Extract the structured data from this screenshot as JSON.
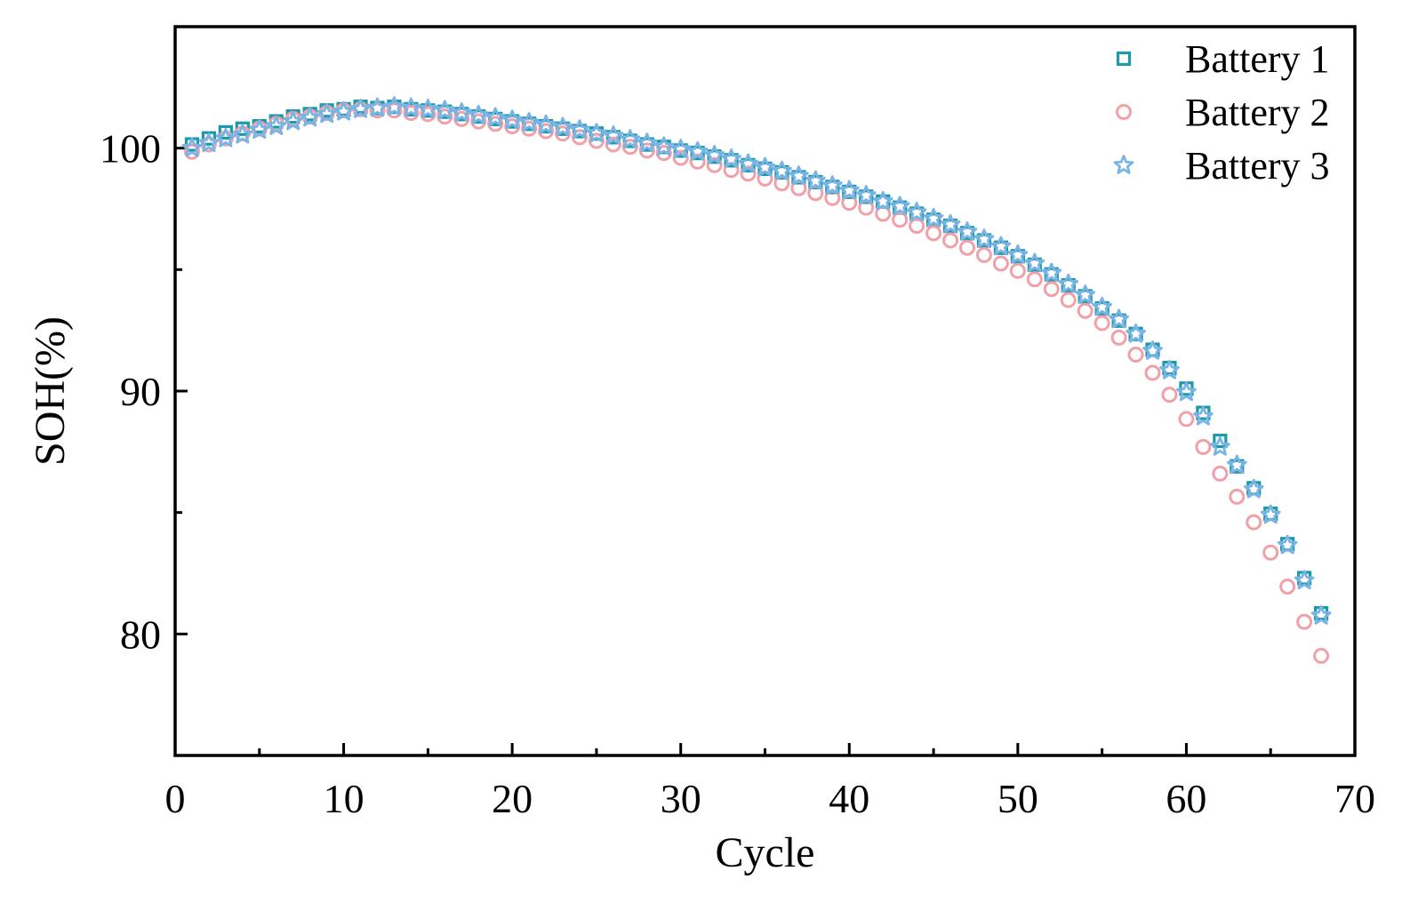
{
  "chart_data": {
    "type": "scatter",
    "title": "",
    "xlabel": "Cycle",
    "ylabel": "SOH(%)",
    "xlim": [
      0,
      70
    ],
    "ylim": [
      75,
      105
    ],
    "xticks": [
      0,
      10,
      20,
      30,
      40,
      50,
      60,
      70
    ],
    "yticks": [
      80,
      90,
      100
    ],
    "legend_position": "top-right",
    "grid": false,
    "x": [
      1,
      2,
      3,
      4,
      5,
      6,
      7,
      8,
      9,
      10,
      11,
      12,
      13,
      14,
      15,
      16,
      17,
      18,
      19,
      20,
      21,
      22,
      23,
      24,
      25,
      26,
      27,
      28,
      29,
      30,
      31,
      32,
      33,
      34,
      35,
      36,
      37,
      38,
      39,
      40,
      41,
      42,
      43,
      44,
      45,
      46,
      47,
      48,
      49,
      50,
      51,
      52,
      53,
      54,
      55,
      56,
      57,
      58,
      59,
      60,
      61,
      62,
      63,
      64,
      65,
      66,
      67,
      68
    ],
    "series": [
      {
        "name": "Battery 1",
        "marker": "square",
        "color": "#1a9aaa",
        "values": [
          100.15,
          100.4,
          100.65,
          100.8,
          100.9,
          101.1,
          101.3,
          101.4,
          101.55,
          101.6,
          101.7,
          101.65,
          101.7,
          101.6,
          101.55,
          101.5,
          101.4,
          101.3,
          101.2,
          101.1,
          101.0,
          100.9,
          100.8,
          100.7,
          100.6,
          100.45,
          100.3,
          100.15,
          100.05,
          99.9,
          99.8,
          99.65,
          99.5,
          99.3,
          99.15,
          99.0,
          98.8,
          98.6,
          98.4,
          98.2,
          98.0,
          97.8,
          97.55,
          97.3,
          97.05,
          96.8,
          96.5,
          96.2,
          95.9,
          95.55,
          95.2,
          94.8,
          94.35,
          93.9,
          93.4,
          92.9,
          92.35,
          91.7,
          90.95,
          90.1,
          89.1,
          87.95,
          86.9,
          86.0,
          84.95,
          83.7,
          82.3,
          80.85
        ]
      },
      {
        "name": "Battery 2",
        "marker": "circle",
        "color": "#f2a0a8",
        "values": [
          99.85,
          100.15,
          100.4,
          100.6,
          100.8,
          101.0,
          101.2,
          101.3,
          101.45,
          101.55,
          101.6,
          101.55,
          101.55,
          101.45,
          101.4,
          101.3,
          101.2,
          101.1,
          101.0,
          100.9,
          100.8,
          100.7,
          100.6,
          100.45,
          100.3,
          100.15,
          100.05,
          99.9,
          99.8,
          99.6,
          99.45,
          99.3,
          99.1,
          98.95,
          98.75,
          98.55,
          98.35,
          98.15,
          97.95,
          97.75,
          97.55,
          97.3,
          97.05,
          96.8,
          96.5,
          96.2,
          95.9,
          95.6,
          95.25,
          94.95,
          94.6,
          94.2,
          93.75,
          93.3,
          92.8,
          92.2,
          91.5,
          90.75,
          89.85,
          88.85,
          87.7,
          86.6,
          85.65,
          84.6,
          83.35,
          81.95,
          80.5,
          79.1
        ]
      },
      {
        "name": "Battery 3",
        "marker": "star",
        "color": "#7ab4e4",
        "values": [
          100.0,
          100.2,
          100.4,
          100.55,
          100.75,
          100.9,
          101.1,
          101.25,
          101.4,
          101.5,
          101.6,
          101.65,
          101.7,
          101.65,
          101.6,
          101.55,
          101.45,
          101.35,
          101.25,
          101.15,
          101.05,
          100.95,
          100.85,
          100.75,
          100.6,
          100.5,
          100.35,
          100.2,
          100.05,
          99.95,
          99.85,
          99.7,
          99.55,
          99.35,
          99.2,
          99.05,
          98.85,
          98.65,
          98.45,
          98.25,
          98.05,
          97.8,
          97.6,
          97.35,
          97.1,
          96.85,
          96.55,
          96.25,
          95.95,
          95.6,
          95.25,
          94.85,
          94.4,
          93.95,
          93.45,
          92.95,
          92.35,
          91.65,
          90.85,
          89.95,
          88.95,
          87.7,
          86.95,
          85.95,
          84.9,
          83.65,
          82.2,
          80.75
        ]
      }
    ]
  }
}
